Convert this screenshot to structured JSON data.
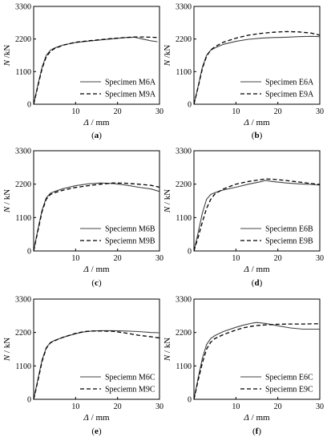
{
  "chart_data": [
    {
      "type": "line",
      "panel": "(a)",
      "xlabel": "Δ / mm",
      "ylabel": "N /kN",
      "xlim": [
        0,
        30
      ],
      "ylim": [
        0,
        3300
      ],
      "xticks": [
        10,
        20,
        30
      ],
      "yticks": [
        0,
        1100,
        2200,
        3300
      ],
      "legend_position": "lower-right",
      "series": [
        {
          "name": "Specimen M6A",
          "style": "solid",
          "x": [
            0,
            1,
            2,
            3,
            4,
            5,
            7,
            10,
            13,
            16,
            19,
            22,
            24,
            26,
            28,
            29.5
          ],
          "y": [
            0,
            650,
            1250,
            1650,
            1820,
            1900,
            2000,
            2080,
            2130,
            2170,
            2210,
            2250,
            2260,
            2200,
            2140,
            2110
          ]
        },
        {
          "name": "Specimen M9A",
          "style": "dashed",
          "x": [
            0,
            1,
            2,
            3,
            4,
            5,
            7,
            10,
            13,
            16,
            19,
            22,
            24,
            26,
            28,
            29.5
          ],
          "y": [
            0,
            600,
            1200,
            1600,
            1780,
            1880,
            1990,
            2090,
            2140,
            2180,
            2220,
            2250,
            2270,
            2270,
            2260,
            2250
          ]
        }
      ]
    },
    {
      "type": "line",
      "panel": "(b)",
      "xlabel": "Δ / mm",
      "ylabel": "N /kN",
      "xlim": [
        0,
        30
      ],
      "ylim": [
        0,
        3300
      ],
      "xticks": [
        10,
        20,
        30
      ],
      "yticks": [
        0,
        1100,
        2200,
        3300
      ],
      "legend_position": "lower-right",
      "series": [
        {
          "name": "Specimen E6A",
          "style": "solid",
          "x": [
            0,
            1,
            2,
            3,
            4,
            5,
            7,
            10,
            13,
            16,
            19,
            22,
            25,
            28,
            30
          ],
          "y": [
            0,
            600,
            1250,
            1650,
            1820,
            1900,
            2020,
            2120,
            2190,
            2230,
            2250,
            2260,
            2280,
            2290,
            2280
          ]
        },
        {
          "name": "Specimen E9A",
          "style": "dashed",
          "x": [
            0,
            1,
            2,
            3,
            4,
            5,
            7,
            10,
            13,
            16,
            19,
            22,
            25,
            28,
            30
          ],
          "y": [
            0,
            580,
            1200,
            1620,
            1830,
            1940,
            2090,
            2230,
            2330,
            2390,
            2430,
            2450,
            2440,
            2400,
            2330
          ]
        }
      ]
    },
    {
      "type": "line",
      "panel": "(c)",
      "xlabel": "Δ / mm",
      "ylabel": "N / kN",
      "xlim": [
        0,
        30
      ],
      "ylim": [
        0,
        3300
      ],
      "xticks": [
        10,
        20,
        30
      ],
      "yticks": [
        0,
        1100,
        2200,
        3300
      ],
      "legend_position": "lower-right",
      "series": [
        {
          "name": "Speciemn M6B",
          "style": "solid",
          "x": [
            0,
            1,
            2,
            3,
            4,
            5,
            7,
            10,
            13,
            16,
            19,
            22,
            25,
            28,
            30
          ],
          "y": [
            0,
            700,
            1350,
            1750,
            1900,
            1960,
            2050,
            2150,
            2210,
            2240,
            2220,
            2170,
            2100,
            2040,
            1960
          ]
        },
        {
          "name": "Speciemn M9B",
          "style": "dashed",
          "x": [
            0,
            1,
            2,
            3,
            4,
            5,
            7,
            10,
            13,
            16,
            19,
            22,
            25,
            28,
            30
          ],
          "y": [
            0,
            650,
            1300,
            1700,
            1860,
            1920,
            2000,
            2090,
            2150,
            2200,
            2240,
            2230,
            2200,
            2160,
            2100
          ]
        }
      ]
    },
    {
      "type": "line",
      "panel": "(d)",
      "xlabel": "Δ / mm",
      "ylabel": "N / kN",
      "xlim": [
        0,
        30
      ],
      "ylim": [
        0,
        3300
      ],
      "xticks": [
        10,
        20,
        30
      ],
      "yticks": [
        0,
        1100,
        2200,
        3300
      ],
      "legend_position": "lower-right",
      "series": [
        {
          "name": "Speciemn  E6B",
          "style": "solid",
          "x": [
            0,
            1,
            2,
            3,
            4,
            5,
            7,
            10,
            13,
            16,
            17,
            19,
            22,
            25,
            28,
            30
          ],
          "y": [
            0,
            600,
            1250,
            1700,
            1860,
            1920,
            2010,
            2100,
            2200,
            2280,
            2320,
            2280,
            2240,
            2210,
            2190,
            2170
          ]
        },
        {
          "name": "Speciemn  E9B",
          "style": "dashed",
          "x": [
            0,
            1,
            2,
            3,
            4,
            5,
            7,
            10,
            13,
            16,
            17,
            19,
            22,
            25,
            28,
            30
          ],
          "y": [
            0,
            450,
            950,
            1400,
            1700,
            1880,
            2040,
            2200,
            2290,
            2350,
            2370,
            2360,
            2320,
            2270,
            2220,
            2190
          ]
        }
      ]
    },
    {
      "type": "line",
      "panel": "(e)",
      "xlabel": "Δ / mm",
      "ylabel": "N / kN",
      "xlim": [
        0,
        30
      ],
      "ylim": [
        0,
        3300
      ],
      "xticks": [
        10,
        20,
        30
      ],
      "yticks": [
        0,
        1100,
        2200,
        3300
      ],
      "legend_position": "lower-right",
      "series": [
        {
          "name": "Speciemn M6C",
          "style": "solid",
          "x": [
            0,
            1,
            2,
            3,
            4,
            5,
            7,
            10,
            12,
            14,
            16,
            19,
            22,
            25,
            28,
            30
          ],
          "y": [
            0,
            650,
            1300,
            1700,
            1870,
            1940,
            2040,
            2160,
            2220,
            2250,
            2260,
            2260,
            2250,
            2230,
            2200,
            2190
          ]
        },
        {
          "name": "Speciemn M9C",
          "style": "dashed",
          "x": [
            0,
            1,
            2,
            3,
            4,
            5,
            7,
            10,
            12,
            14,
            16,
            19,
            22,
            25,
            28,
            30
          ],
          "y": [
            0,
            600,
            1250,
            1680,
            1860,
            1930,
            2040,
            2170,
            2230,
            2250,
            2250,
            2240,
            2180,
            2110,
            2060,
            2020
          ]
        }
      ]
    },
    {
      "type": "line",
      "panel": "(f)",
      "xlabel": "Δ / mm",
      "ylabel": "N / kN",
      "xlim": [
        0,
        30
      ],
      "ylim": [
        0,
        3300
      ],
      "xticks": [
        10,
        20,
        30
      ],
      "yticks": [
        0,
        1100,
        2200,
        3300
      ],
      "legend_position": "lower-right",
      "series": [
        {
          "name": "Speciemn E6C",
          "style": "solid",
          "x": [
            0,
            1,
            2,
            3,
            4,
            5,
            7,
            10,
            12,
            14,
            15,
            17,
            20,
            23,
            26,
            30
          ],
          "y": [
            0,
            700,
            1350,
            1800,
            2000,
            2100,
            2230,
            2370,
            2450,
            2510,
            2530,
            2500,
            2420,
            2350,
            2310,
            2310
          ]
        },
        {
          "name": "Speciemn E9C",
          "style": "dashed",
          "x": [
            0,
            1,
            2,
            3,
            4,
            5,
            7,
            10,
            12,
            14,
            15,
            17,
            20,
            23,
            26,
            30
          ],
          "y": [
            0,
            620,
            1200,
            1650,
            1880,
            2000,
            2130,
            2280,
            2360,
            2410,
            2430,
            2450,
            2470,
            2480,
            2480,
            2490
          ]
        }
      ]
    }
  ]
}
